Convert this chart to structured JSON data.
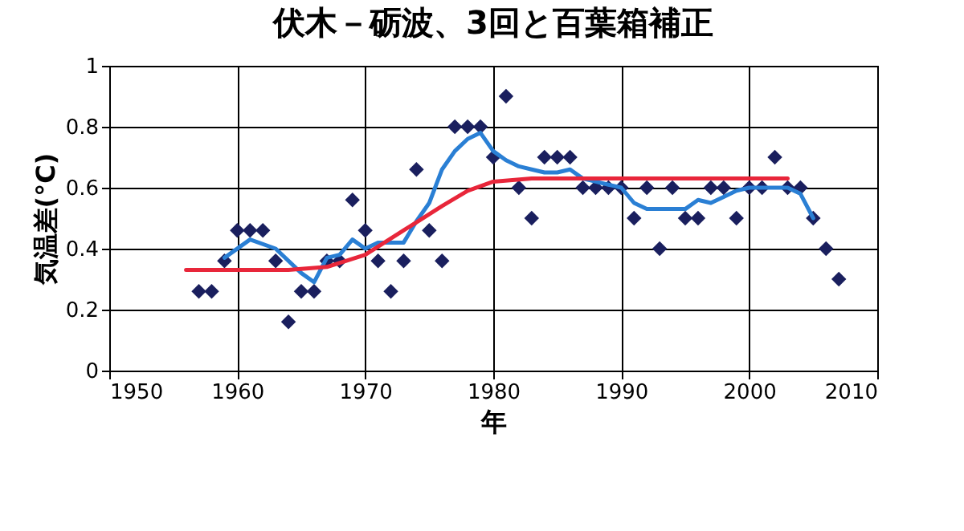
{
  "chart_data": {
    "type": "scatter",
    "title": "伏木－砺波、3回と百葉箱補正",
    "xlabel": "年",
    "ylabel": "気温差(°C)",
    "xlim": [
      1950,
      2010
    ],
    "xticks": [
      1950,
      1960,
      1970,
      1980,
      1990,
      2000,
      2010
    ],
    "ylim": [
      0,
      1
    ],
    "yticks": [
      0,
      0.2,
      0.4,
      0.6,
      0.8,
      1
    ],
    "grid": true,
    "series": [
      {
        "marker": "diamond",
        "color": "#1a1f5e",
        "x": [
          1957,
          1958,
          1959,
          1960,
          1961,
          1962,
          1963,
          1964,
          1965,
          1966,
          1967,
          1968,
          1969,
          1970,
          1971,
          1972,
          1973,
          1974,
          1975,
          1976,
          1977,
          1978,
          1979,
          1980,
          1981,
          1982,
          1983,
          1984,
          1985,
          1986,
          1987,
          1988,
          1989,
          1990,
          1991,
          1992,
          1993,
          1994,
          1995,
          1996,
          1997,
          1998,
          1999,
          2000,
          2001,
          2002,
          2003,
          2004,
          2005,
          2006,
          2007
        ],
        "values": [
          0.26,
          0.26,
          0.36,
          0.46,
          0.46,
          0.46,
          0.36,
          0.16,
          0.26,
          0.26,
          0.36,
          0.36,
          0.56,
          0.46,
          0.36,
          0.26,
          0.36,
          0.66,
          0.46,
          0.36,
          0.8,
          0.8,
          0.8,
          0.7,
          0.9,
          0.6,
          0.5,
          0.7,
          0.7,
          0.7,
          0.6,
          0.6,
          0.6,
          0.6,
          0.5,
          0.6,
          0.4,
          0.6,
          0.5,
          0.5,
          0.6,
          0.6,
          0.5,
          0.6,
          0.6,
          0.7,
          0.6,
          0.6,
          0.5,
          0.4,
          0.3
        ]
      },
      {
        "type": "line",
        "color": "#2a7fd4",
        "x": [
          1959,
          1961,
          1963,
          1965,
          1966,
          1967,
          1968,
          1969,
          1970,
          1971,
          1972,
          1973,
          1974,
          1975,
          1976,
          1977,
          1978,
          1979,
          1980,
          1981,
          1982,
          1983,
          1984,
          1985,
          1986,
          1987,
          1988,
          1989,
          1990,
          1991,
          1992,
          1993,
          1994,
          1995,
          1996,
          1997,
          1998,
          1999,
          2000,
          2001,
          2002,
          2003,
          2004,
          2005
        ],
        "values": [
          0.37,
          0.43,
          0.4,
          0.32,
          0.29,
          0.37,
          0.38,
          0.43,
          0.4,
          0.42,
          0.42,
          0.42,
          0.49,
          0.55,
          0.66,
          0.72,
          0.76,
          0.78,
          0.72,
          0.69,
          0.67,
          0.66,
          0.65,
          0.65,
          0.66,
          0.63,
          0.62,
          0.61,
          0.6,
          0.55,
          0.53,
          0.53,
          0.53,
          0.53,
          0.56,
          0.55,
          0.57,
          0.59,
          0.6,
          0.6,
          0.6,
          0.6,
          0.58,
          0.5
        ]
      },
      {
        "type": "line",
        "color": "#e8263a",
        "x": [
          1956,
          1964,
          1967,
          1970,
          1973,
          1976,
          1978,
          1980,
          1983,
          1990,
          2003
        ],
        "values": [
          0.33,
          0.33,
          0.34,
          0.38,
          0.46,
          0.54,
          0.59,
          0.62,
          0.63,
          0.63,
          0.63
        ]
      }
    ]
  }
}
